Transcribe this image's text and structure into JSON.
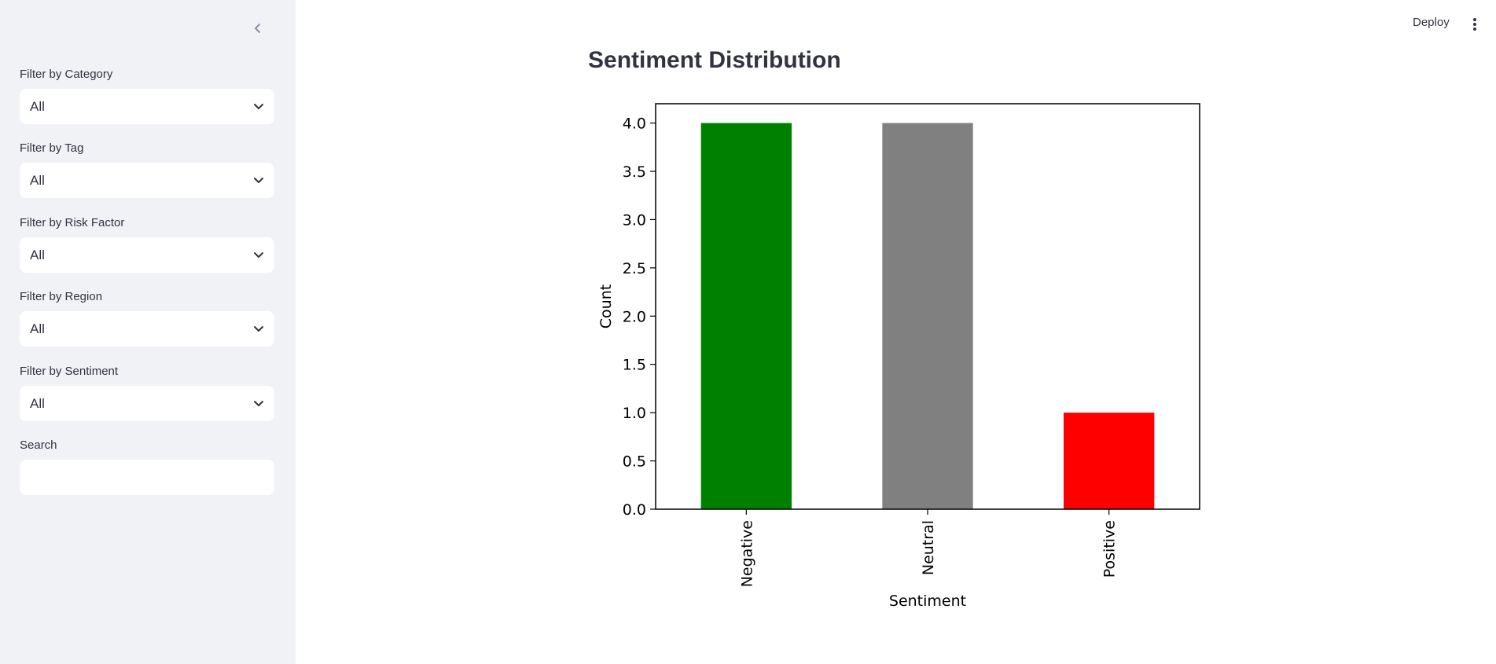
{
  "sidebar": {
    "collapse_icon": "chevron-left-icon",
    "filters": [
      {
        "label": "Filter by Category",
        "value": "All"
      },
      {
        "label": "Filter by Tag",
        "value": "All"
      },
      {
        "label": "Filter by Risk Factor",
        "value": "All"
      },
      {
        "label": "Filter by Region",
        "value": "All"
      },
      {
        "label": "Filter by Sentiment",
        "value": "All"
      }
    ],
    "search": {
      "label": "Search",
      "value": ""
    }
  },
  "topbar": {
    "deploy_label": "Deploy",
    "menu_icon": "kebab-menu-icon"
  },
  "main": {
    "title": "Sentiment Distribution"
  },
  "chart_data": {
    "type": "bar",
    "categories": [
      "Negative",
      "Neutral",
      "Positive"
    ],
    "values": [
      4,
      4,
      1
    ],
    "colors": [
      "#008000",
      "#808080",
      "#ff0000"
    ],
    "xlabel": "Sentiment",
    "ylabel": "Count",
    "ylim": [
      0,
      4.2
    ],
    "yticks": [
      0.0,
      0.5,
      1.0,
      1.5,
      2.0,
      2.5,
      3.0,
      3.5,
      4.0
    ],
    "ytick_labels": [
      "0.0",
      "0.5",
      "1.0",
      "1.5",
      "2.0",
      "2.5",
      "3.0",
      "3.5",
      "4.0"
    ],
    "grid": false,
    "xtick_rotation": "vertical"
  }
}
